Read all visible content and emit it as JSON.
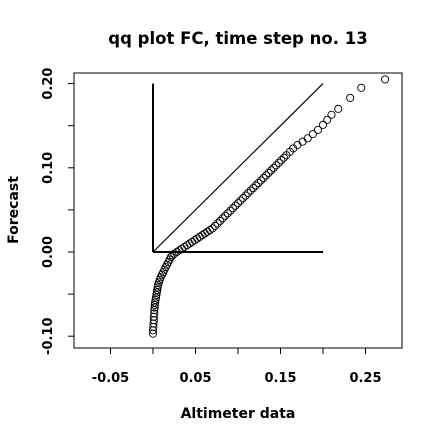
{
  "chart_data": {
    "type": "scatter",
    "title": "qq plot FC, time step no. 13",
    "xlabel": "Altimeter data",
    "ylabel": "Forecast",
    "xlim": [
      -0.1,
      0.3
    ],
    "ylim": [
      -0.105,
      0.215
    ],
    "xticks": [
      -0.05,
      0.05,
      0.15,
      0.25
    ],
    "xtick_labels": [
      "-0.05",
      "0.05",
      "0.15",
      "0.25"
    ],
    "xtick_minor": [
      0.0,
      0.1,
      0.2
    ],
    "yticks": [
      -0.1,
      0.0,
      0.1,
      0.2
    ],
    "ytick_labels": [
      "-0.10",
      "0.00",
      "0.10",
      "0.20"
    ],
    "ytick_minor": [
      -0.05,
      0.05,
      0.15
    ],
    "grid": false,
    "reference_lines": [
      {
        "kind": "identity",
        "x": [
          0.0,
          0.2
        ],
        "y": [
          0.0,
          0.2
        ]
      },
      {
        "kind": "horizontal",
        "x": [
          0.0,
          0.2
        ],
        "y": [
          0.0,
          0.0
        ]
      },
      {
        "kind": "vertical",
        "x": [
          0.0,
          0.0
        ],
        "y": [
          0.0,
          0.2
        ]
      }
    ],
    "points": [
      [
        0.0,
        -0.097
      ],
      [
        0.0,
        -0.093
      ],
      [
        0.0005,
        -0.089
      ],
      [
        0.0005,
        -0.085
      ],
      [
        0.001,
        -0.081
      ],
      [
        0.001,
        -0.077
      ],
      [
        0.0015,
        -0.073
      ],
      [
        0.0015,
        -0.069
      ],
      [
        0.002,
        -0.066
      ],
      [
        0.002,
        -0.063
      ],
      [
        0.0025,
        -0.06
      ],
      [
        0.003,
        -0.057
      ],
      [
        0.0035,
        -0.054
      ],
      [
        0.004,
        -0.051
      ],
      [
        0.0045,
        -0.048
      ],
      [
        0.005,
        -0.045
      ],
      [
        0.0055,
        -0.042
      ],
      [
        0.006,
        -0.039
      ],
      [
        0.007,
        -0.036
      ],
      [
        0.008,
        -0.033
      ],
      [
        0.009,
        -0.03
      ],
      [
        0.0105,
        -0.027
      ],
      [
        0.012,
        -0.024
      ],
      [
        0.0135,
        -0.021
      ],
      [
        0.015,
        -0.018
      ],
      [
        0.0165,
        -0.015
      ],
      [
        0.018,
        -0.012
      ],
      [
        0.0195,
        -0.009
      ],
      [
        0.021,
        -0.006
      ],
      [
        0.023,
        -0.004
      ],
      [
        0.025,
        -0.002
      ],
      [
        0.028,
        0.0
      ],
      [
        0.031,
        0.002
      ],
      [
        0.034,
        0.004
      ],
      [
        0.037,
        0.006
      ],
      [
        0.04,
        0.008
      ],
      [
        0.043,
        0.01
      ],
      [
        0.046,
        0.012
      ],
      [
        0.049,
        0.014
      ],
      [
        0.052,
        0.016
      ],
      [
        0.055,
        0.018
      ],
      [
        0.058,
        0.02
      ],
      [
        0.061,
        0.022
      ],
      [
        0.064,
        0.024
      ],
      [
        0.067,
        0.026
      ],
      [
        0.07,
        0.028
      ],
      [
        0.073,
        0.031
      ],
      [
        0.076,
        0.034
      ],
      [
        0.079,
        0.037
      ],
      [
        0.082,
        0.04
      ],
      [
        0.085,
        0.043
      ],
      [
        0.088,
        0.046
      ],
      [
        0.091,
        0.049
      ],
      [
        0.094,
        0.052
      ],
      [
        0.097,
        0.055
      ],
      [
        0.1,
        0.058
      ],
      [
        0.103,
        0.061
      ],
      [
        0.106,
        0.064
      ],
      [
        0.109,
        0.067
      ],
      [
        0.112,
        0.07
      ],
      [
        0.115,
        0.073
      ],
      [
        0.118,
        0.076
      ],
      [
        0.121,
        0.079
      ],
      [
        0.124,
        0.082
      ],
      [
        0.127,
        0.085
      ],
      [
        0.13,
        0.088
      ],
      [
        0.133,
        0.091
      ],
      [
        0.136,
        0.094
      ],
      [
        0.139,
        0.097
      ],
      [
        0.142,
        0.1
      ],
      [
        0.145,
        0.103
      ],
      [
        0.148,
        0.106
      ],
      [
        0.151,
        0.109
      ],
      [
        0.154,
        0.112
      ],
      [
        0.157,
        0.115
      ],
      [
        0.161,
        0.119
      ],
      [
        0.165,
        0.123
      ],
      [
        0.17,
        0.127
      ],
      [
        0.176,
        0.131
      ],
      [
        0.182,
        0.135
      ],
      [
        0.188,
        0.14
      ],
      [
        0.194,
        0.145
      ],
      [
        0.2,
        0.151
      ],
      [
        0.205,
        0.157
      ],
      [
        0.21,
        0.163
      ],
      [
        0.218,
        0.17
      ],
      [
        0.232,
        0.183
      ],
      [
        0.245,
        0.195
      ],
      [
        0.273,
        0.205
      ]
    ]
  }
}
